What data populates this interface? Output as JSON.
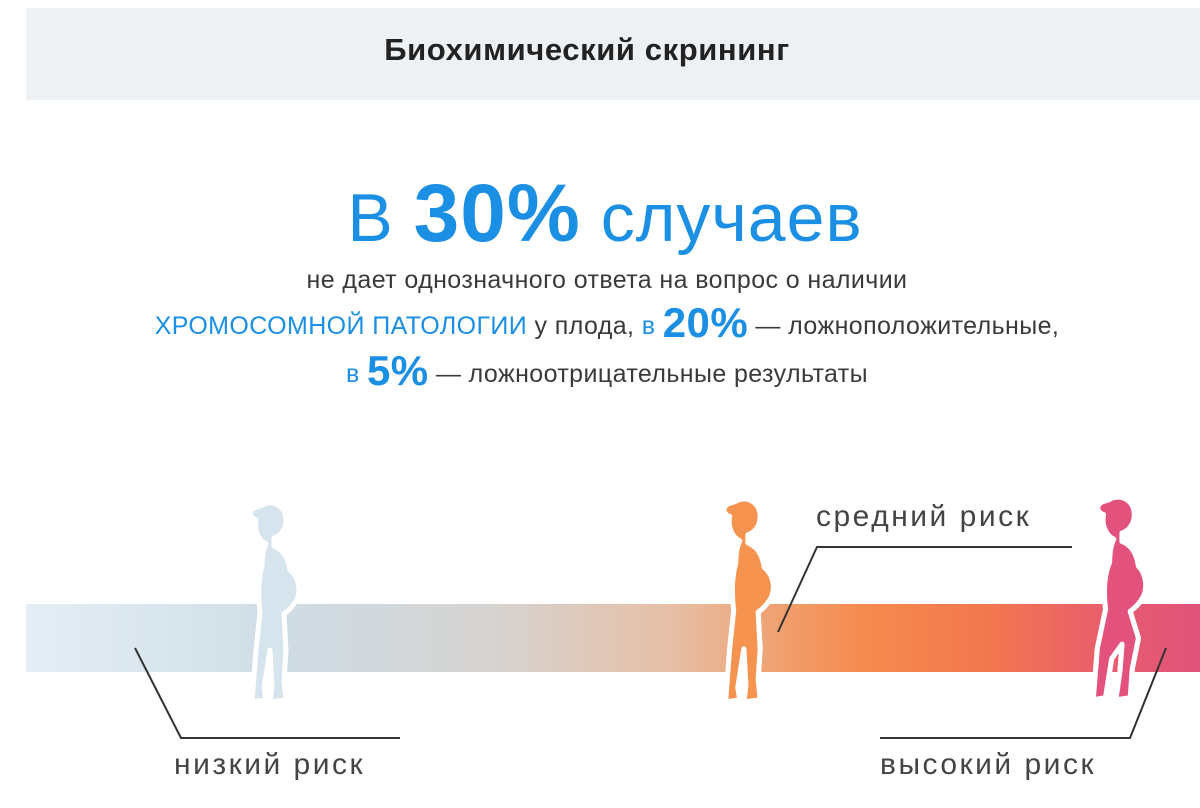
{
  "header": {
    "title": "Биохимический скрининг"
  },
  "headline": {
    "prefix": "В",
    "value": "30%",
    "suffix": "случаев"
  },
  "body": {
    "line1": "не дает однозначного ответа на вопрос о наличии",
    "line2_highlight": "ХРОМОСОМНОЙ ПАТОЛОГИИ",
    "line2_mid": "у плода,",
    "line2_pre": "в",
    "line2_value": "20%",
    "line2_tail": "— ложноположительные,",
    "line3_pre": "в",
    "line3_value": "5%",
    "line3_tail": "— ложноотрицательные результаты"
  },
  "risk_scale": {
    "low_label": "низкий риск",
    "medium_label": "средний риск",
    "high_label": "высокий риск",
    "colors": {
      "low": "#dbe7ef",
      "medium": "#f5894e",
      "high": "#e0537a",
      "accent": "#1a8fe3"
    },
    "figures": [
      "pregnant-woman-low-icon",
      "pregnant-woman-medium-icon",
      "pregnant-woman-high-icon"
    ]
  }
}
